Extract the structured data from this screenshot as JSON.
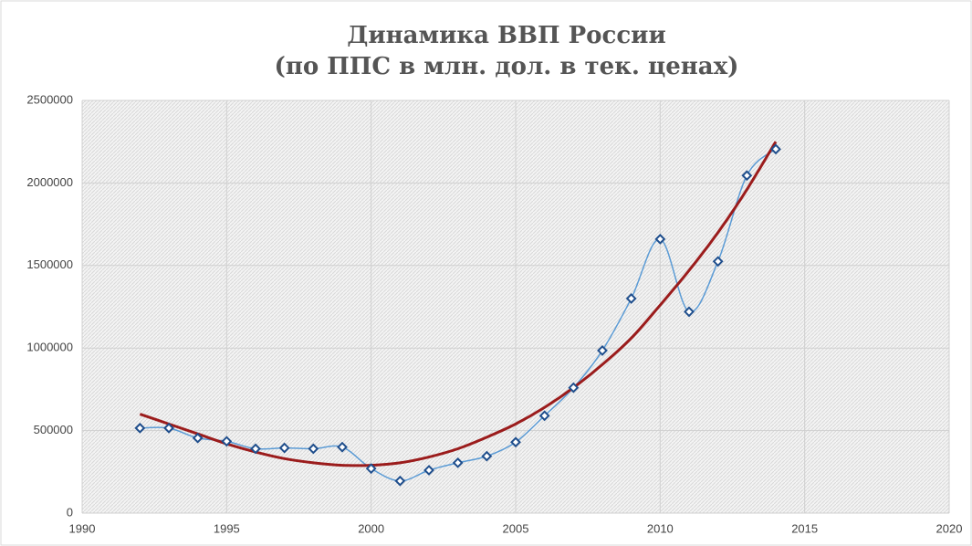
{
  "chart_data": {
    "type": "line",
    "title": "Динамика ВВП России",
    "subtitle": "(по ППС в млн. дол. в тек. ценах)",
    "x": [
      1992,
      1993,
      1994,
      1995,
      1996,
      1997,
      1998,
      1999,
      2000,
      2001,
      2002,
      2003,
      2004,
      2005,
      2006,
      2007,
      2008,
      2009,
      2010,
      2011,
      2012,
      2013,
      2014
    ],
    "series": [
      {
        "color": "#5b9bd5",
        "marker_color": "#1f4e8c",
        "smooth": true,
        "markers": true,
        "values": [
          515000,
          515000,
          455000,
          435000,
          390000,
          395000,
          390000,
          400000,
          270000,
          195000,
          260000,
          305000,
          345000,
          430000,
          590000,
          760000,
          985000,
          1300000,
          1660000,
          1220000,
          1525000,
          2045000,
          2205000
        ]
      },
      {
        "color": "#9b1c1c",
        "smooth": true,
        "markers": false,
        "values": [
          600000,
          540000,
          480000,
          420000,
          370000,
          330000,
          305000,
          290000,
          290000,
          305000,
          340000,
          390000,
          460000,
          540000,
          640000,
          760000,
          900000,
          1060000,
          1260000,
          1470000,
          1700000,
          1960000,
          2250000
        ]
      }
    ],
    "xlim": [
      1990,
      2020
    ],
    "xticks": [
      1990,
      1995,
      2000,
      2005,
      2010,
      2015,
      2020
    ],
    "ylim": [
      0,
      2500000
    ],
    "yticks": [
      0,
      500000,
      1000000,
      1500000,
      2000000,
      2500000
    ],
    "grid": true
  }
}
